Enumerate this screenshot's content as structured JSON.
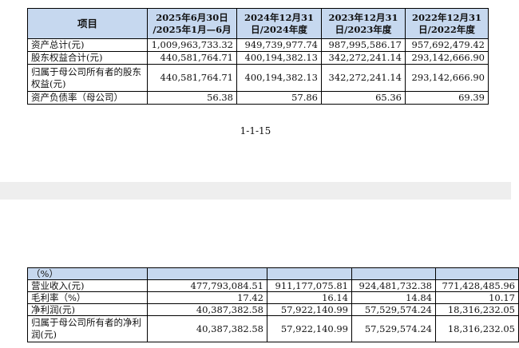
{
  "top_table": {
    "headers": [
      "项目",
      "2025年6月30日\n/2025年1月—6月",
      "2024年12月31\n日/2024年度",
      "2023年12月31\n日/2023年度",
      "2022年12月31\n日/2022年度"
    ],
    "rows": [
      {
        "label": "资产总计(元)",
        "values": [
          "1,009,963,733.32",
          "949,739,977.74",
          "987,995,586.17",
          "957,692,479.42"
        ]
      },
      {
        "label": "股东权益合计(元)",
        "values": [
          "440,581,764.71",
          "400,194,382.13",
          "342,272,241.14",
          "293,142,666.90"
        ]
      },
      {
        "label": "归属于母公司所有者的股东权益(元)",
        "values": [
          "440,581,764.71",
          "400,194,382.13",
          "342,272,241.14",
          "293,142,666.90"
        ]
      },
      {
        "label": "资产负债率（母公司）",
        "values": [
          "56.38",
          "57.86",
          "65.36",
          "69.39"
        ]
      }
    ]
  },
  "page_number": "1-1-15",
  "bottom_table": {
    "unit_row_label": "（%）",
    "rows": [
      {
        "label": "营业收入(元)",
        "values": [
          "477,793,084.51",
          "911,177,075.81",
          "924,481,732.38",
          "771,428,485.96"
        ]
      },
      {
        "label": "毛利率（%）",
        "values": [
          "17.42",
          "16.14",
          "14.84",
          "10.17"
        ]
      },
      {
        "label": "净利润(元)",
        "values": [
          "40,387,382.58",
          "57,922,140.99",
          "57,529,574.24",
          "18,316,232.05"
        ]
      },
      {
        "label": "归属于母公司所有者的净利润(元)",
        "values": [
          "40,387,382.58",
          "57,922,140.99",
          "57,529,574.24",
          "18,316,232.05"
        ]
      }
    ]
  },
  "colors": {
    "header_fill": "#c6d8ef",
    "page_gap": "#eeeeee"
  }
}
